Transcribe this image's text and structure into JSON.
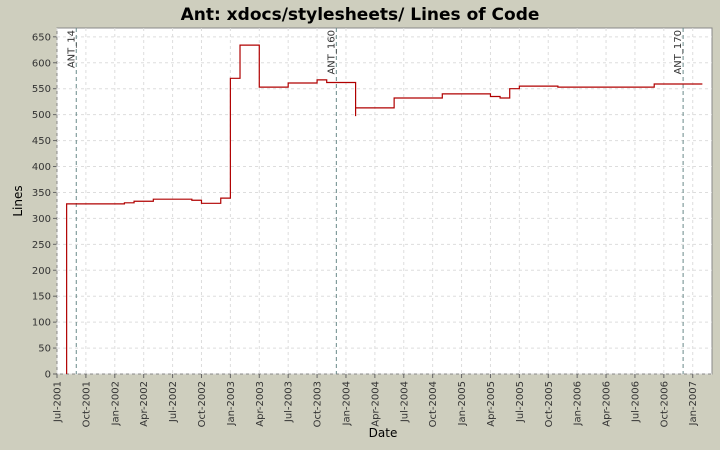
{
  "chart_data": {
    "type": "step-line",
    "title": "Ant: xdocs/stylesheets/ Lines of Code",
    "xlabel": "Date",
    "ylabel": "Lines",
    "x": [
      "2001-08",
      "2001-08",
      "2002-02",
      "2002-03",
      "2002-05",
      "2002-09",
      "2002-10",
      "2002-12",
      "2003-01",
      "2003-01",
      "2003-02",
      "2003-04",
      "2003-07",
      "2003-10",
      "2003-10",
      "2003-11",
      "2004-02",
      "2004-02",
      "2004-06",
      "2004-11",
      "2004-11",
      "2005-04",
      "2005-05",
      "2005-06",
      "2005-07",
      "2005-11",
      "2006-09",
      "2006-09",
      "2007-02"
    ],
    "series": [
      {
        "name": "Lines",
        "color": "#b00000",
        "values": [
          0,
          328,
          330,
          333,
          337,
          335,
          329,
          339,
          348,
          570,
          634,
          553,
          561,
          565,
          567,
          562,
          497,
          513,
          532,
          537,
          540,
          535,
          532,
          550,
          555,
          553,
          556,
          559,
          559
        ]
      }
    ],
    "markers": [
      {
        "label": "ANT_14",
        "x": "2001-09"
      },
      {
        "label": "ANT_160",
        "x": "2003-12"
      },
      {
        "label": "ANT_170",
        "x": "2006-12"
      }
    ],
    "xlim": [
      "2001-07",
      "2007-03"
    ],
    "xticks": [
      {
        "value": "2001-07",
        "label": "Jul-2001"
      },
      {
        "value": "2001-10",
        "label": "Oct-2001"
      },
      {
        "value": "2002-01",
        "label": "Jan-2002"
      },
      {
        "value": "2002-04",
        "label": "Apr-2002"
      },
      {
        "value": "2002-07",
        "label": "Jul-2002"
      },
      {
        "value": "2002-10",
        "label": "Oct-2002"
      },
      {
        "value": "2003-01",
        "label": "Jan-2003"
      },
      {
        "value": "2003-04",
        "label": "Apr-2003"
      },
      {
        "value": "2003-07",
        "label": "Jul-2003"
      },
      {
        "value": "2003-10",
        "label": "Oct-2003"
      },
      {
        "value": "2004-01",
        "label": "Jan-2004"
      },
      {
        "value": "2004-04",
        "label": "Apr-2004"
      },
      {
        "value": "2004-07",
        "label": "Jul-2004"
      },
      {
        "value": "2004-10",
        "label": "Oct-2004"
      },
      {
        "value": "2005-01",
        "label": "Jan-2005"
      },
      {
        "value": "2005-04",
        "label": "Apr-2005"
      },
      {
        "value": "2005-07",
        "label": "Jul-2005"
      },
      {
        "value": "2005-10",
        "label": "Oct-2005"
      },
      {
        "value": "2006-01",
        "label": "Jan-2006"
      },
      {
        "value": "2006-04",
        "label": "Apr-2006"
      },
      {
        "value": "2006-07",
        "label": "Jul-2006"
      },
      {
        "value": "2006-10",
        "label": "Oct-2006"
      },
      {
        "value": "2007-01",
        "label": "Jan-2007"
      }
    ],
    "ylim": [
      0,
      667
    ],
    "yticks": [
      0,
      50,
      100,
      150,
      200,
      250,
      300,
      350,
      400,
      450,
      500,
      550,
      600,
      650
    ],
    "grid": true
  }
}
